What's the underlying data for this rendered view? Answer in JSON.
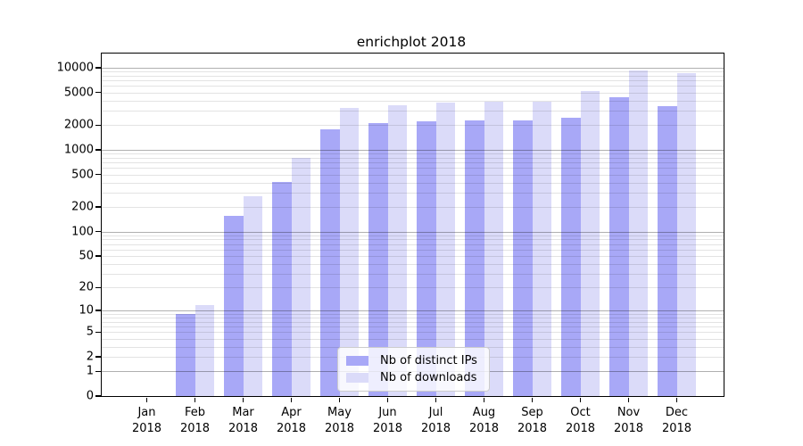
{
  "title": "enrichplot 2018",
  "chart_data": {
    "type": "bar",
    "title": "enrichplot 2018",
    "categories": [
      "Jan",
      "Feb",
      "Mar",
      "Apr",
      "May",
      "Jun",
      "Jul",
      "Aug",
      "Sep",
      "Oct",
      "Nov",
      "Dec"
    ],
    "year": "2018",
    "series": [
      {
        "name": "Nb of distinct IPs",
        "color": "#a8a8f7",
        "values": [
          0,
          9,
          155,
          410,
          1780,
          2100,
          2230,
          2260,
          2290,
          2480,
          4330,
          3380
        ]
      },
      {
        "name": "Nb of downloads",
        "color": "#dbdbf9",
        "values": [
          0,
          12,
          270,
          800,
          3270,
          3470,
          3800,
          3870,
          3900,
          5260,
          9200,
          8680
        ]
      }
    ],
    "ylabel": "",
    "xlabel": "",
    "yscale": "log10(value+1)",
    "yticks": [
      0,
      1,
      2,
      5,
      10,
      20,
      50,
      100,
      200,
      500,
      1000,
      2000,
      5000,
      10000
    ],
    "ylim": [
      0,
      15500
    ],
    "grid": "major and minor horizontal gridlines, drawn over bars",
    "legend_position": "inside lower-center",
    "legend_labels": [
      "Nb of distinct IPs",
      "Nb of downloads"
    ]
  }
}
